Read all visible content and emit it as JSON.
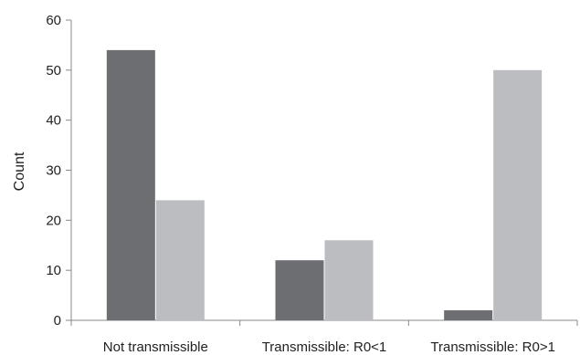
{
  "chart_data": {
    "type": "bar",
    "title": "",
    "xlabel": "",
    "ylabel": "Count",
    "categories": [
      "Not transmissible",
      "Transmissible: R0<1",
      "Transmissible: R0>1"
    ],
    "series": [
      {
        "values": [
          54,
          12,
          2
        ],
        "color": "#6d6e71"
      },
      {
        "values": [
          24,
          16,
          50
        ],
        "color": "#bcbdc0"
      }
    ],
    "ylim": [
      0,
      60
    ],
    "yticks": [
      0,
      10,
      20,
      30,
      40,
      50,
      60
    ],
    "grid": false,
    "legend": "none"
  }
}
